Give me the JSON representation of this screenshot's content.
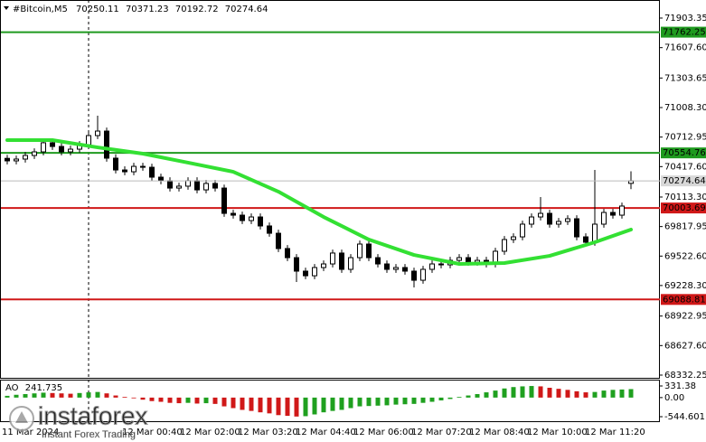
{
  "chart_data": {
    "type": "candlestick",
    "title": "#Bitcoin,M5",
    "xtick_labels": [
      "11 Mar 2024",
      "12 Mar 00:40",
      "12 Mar 02:00",
      "12 Mar 03:20",
      "12 Mar 04:40",
      "12 Mar 06:00",
      "12 Mar 07:20",
      "12 Mar 08:40",
      "12 Mar 10:00",
      "12 Mar 11:20"
    ],
    "open": [
      70500,
      70475,
      70493,
      70529,
      70565,
      70656,
      70619,
      70565,
      70592,
      70637,
      70728,
      70773,
      70502,
      70384,
      70366,
      70420,
      70411,
      70312,
      70276,
      70203,
      70222,
      70276,
      70185,
      70249,
      70203,
      69950,
      69932,
      69878,
      69914,
      69824,
      69751,
      69598,
      69507,
      69372,
      69326,
      69408,
      69444,
      69553,
      69390,
      69507,
      69643,
      69507,
      69444,
      69390,
      69408,
      69372,
      69281,
      69390,
      69444,
      69435,
      69480,
      69507,
      69462,
      69480,
      69444,
      69571,
      69688,
      69715,
      69842,
      69914,
      69950,
      69842,
      69869,
      69896,
      69715,
      69661,
      69842,
      69959,
      69932,
      70250.11
    ],
    "high": [
      70535,
      70528,
      70564,
      70600,
      70700,
      70690,
      70654,
      70627,
      70672,
      70770,
      70927,
      70808,
      70540,
      70420,
      70455,
      70455,
      70446,
      70347,
      70311,
      70257,
      70311,
      70311,
      70284,
      70284,
      70238,
      69985,
      69967,
      69949,
      69949,
      69859,
      69786,
      69633,
      69542,
      69407,
      69443,
      69479,
      69588,
      69588,
      69542,
      69678,
      69678,
      69542,
      69479,
      69443,
      69443,
      69407,
      69425,
      69479,
      69479,
      69515,
      69542,
      69542,
      69515,
      69515,
      69606,
      69723,
      69750,
      69877,
      69949,
      70113,
      69985,
      69904,
      69931,
      69931,
      69750,
      70384,
      69994,
      69994,
      70058,
      70371.23
    ],
    "low": [
      70440,
      70440,
      70458,
      70494,
      70530,
      70584,
      70530,
      70530,
      70557,
      70602,
      70693,
      70467,
      70349,
      70331,
      70331,
      70376,
      70277,
      70241,
      70168,
      70168,
      70187,
      70150,
      70150,
      70168,
      69915,
      69897,
      69843,
      69843,
      69789,
      69716,
      69563,
      69472,
      69263,
      69291,
      69291,
      69373,
      69409,
      69355,
      69355,
      69472,
      69472,
      69409,
      69355,
      69355,
      69337,
      69209,
      69246,
      69355,
      69400,
      69400,
      69445,
      69427,
      69427,
      69409,
      69409,
      69536,
      69653,
      69680,
      69807,
      69879,
      69807,
      69807,
      69834,
      69680,
      69626,
      69626,
      69807,
      69897,
      69897,
      70192.72
    ],
    "close": [
      70475,
      70493,
      70529,
      70565,
      70656,
      70619,
      70565,
      70592,
      70637,
      70728,
      70773,
      70502,
      70384,
      70366,
      70420,
      70411,
      70312,
      70276,
      70203,
      70222,
      70276,
      70185,
      70249,
      70203,
      69950,
      69932,
      69878,
      69914,
      69824,
      69751,
      69598,
      69507,
      69372,
      69326,
      69408,
      69444,
      69553,
      69390,
      69507,
      69643,
      69507,
      69444,
      69390,
      69408,
      69372,
      69281,
      69390,
      69444,
      69435,
      69480,
      69507,
      69462,
      69480,
      69444,
      69571,
      69688,
      69715,
      69842,
      69914,
      69950,
      69842,
      69869,
      69896,
      69715,
      69661,
      69842,
      69959,
      69932,
      70023,
      70274.64
    ],
    "up_color": "#ffffff",
    "down_color": "#000000",
    "ylim": [
      68305,
      72084
    ],
    "yticks": [
      71903.35,
      {
        "value": 71607.6,
        "label": "71607.60"
      },
      71303.65,
      {
        "value": 71008.3,
        "label": "71008.30"
      },
      70712.95,
      {
        "value": 70417.6,
        "label": "70417.60"
      },
      {
        "value": 70113.3,
        "label": "70113.30"
      },
      69817.95,
      {
        "value": 69522.6,
        "label": "69522.60"
      },
      {
        "value": 69228.3,
        "label": "69228.30"
      },
      68922.95,
      {
        "value": 68627.6,
        "label": "68627.60"
      },
      68332.25
    ],
    "levels": [
      {
        "value": 71762.25,
        "color": "#1f9a1f"
      },
      {
        "value": 70554.76,
        "color": "#1f9a1f"
      },
      {
        "value": 70003.69,
        "color": "#d01818"
      },
      {
        "value": 69088.81,
        "color": "#d01818"
      }
    ],
    "ma": {
      "x": [
        0,
        5,
        10,
        15,
        20,
        25,
        30,
        35,
        40,
        45,
        50,
        55,
        60,
        65,
        69
      ],
      "values": [
        70683,
        70683,
        70610,
        70547,
        70457,
        70366,
        70167,
        69914,
        69688,
        69534,
        69444,
        69453,
        69525,
        69661,
        69788
      ],
      "color": "#33e033"
    },
    "ao": {
      "label": "AO",
      "values": [
        50,
        80,
        100,
        120,
        140,
        130,
        120,
        110,
        130,
        150,
        160,
        120,
        60,
        20,
        -20,
        -60,
        -100,
        -120,
        -150,
        -160,
        -150,
        -170,
        -160,
        -180,
        -250,
        -300,
        -350,
        -380,
        -420,
        -450,
        -500,
        -520,
        -540,
        -530,
        -480,
        -420,
        -380,
        -350,
        -300,
        -250,
        -240,
        -230,
        -220,
        -200,
        -190,
        -180,
        -150,
        -120,
        -80,
        -40,
        20,
        60,
        100,
        150,
        200,
        260,
        300,
        320,
        330,
        320,
        280,
        250,
        220,
        180,
        150,
        160,
        200,
        220,
        230,
        241.735
      ],
      "ylim": [
        -699,
        486
      ],
      "yticks": [
        331.38,
        {
          "value": 0,
          "label": "0.00"
        },
        -544.601
      ],
      "up_color": "#1fa01f",
      "down_color": "#d01818"
    }
  },
  "watermark": {
    "brand": "instaforex",
    "tagline": "Instant Forex Trading"
  }
}
